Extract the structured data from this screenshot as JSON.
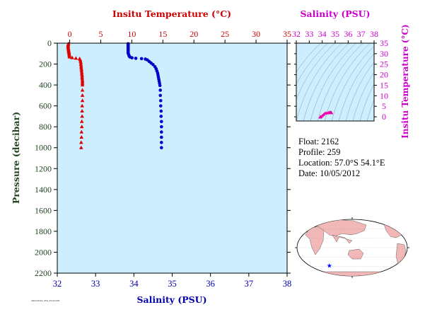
{
  "chart_data": [
    {
      "type": "scatter",
      "title": "",
      "x_top_label": "Insitu Temperature (°C)",
      "x_bottom_label": "Salinity (PSU)",
      "ylabel": "Pressure (decibar)",
      "temp_range": [
        -2,
        35
      ],
      "temp_ticks": [
        0,
        5,
        10,
        15,
        20,
        25,
        30,
        35
      ],
      "sal_range": [
        32,
        38
      ],
      "sal_ticks": [
        32,
        33,
        34,
        35,
        36,
        37,
        38
      ],
      "pressure_range": [
        0,
        2200
      ],
      "pressure_ticks": [
        0,
        200,
        400,
        600,
        800,
        1000,
        1200,
        1400,
        1600,
        1800,
        2000,
        2200
      ],
      "background": "#cceeff",
      "series": [
        {
          "kind": "temperature",
          "color": "#dd0000",
          "marker": "triangle",
          "points": [
            [
              -0.2,
              5
            ],
            [
              -0.25,
              15
            ],
            [
              -0.25,
              25
            ],
            [
              -0.25,
              35
            ],
            [
              -0.25,
              45
            ],
            [
              -0.2,
              55
            ],
            [
              -0.2,
              65
            ],
            [
              -0.15,
              75
            ],
            [
              -0.15,
              85
            ],
            [
              -0.1,
              95
            ],
            [
              -0.1,
              105
            ],
            [
              -0.05,
              115
            ],
            [
              -0.05,
              125
            ],
            [
              0.0,
              133
            ],
            [
              0.4,
              140
            ],
            [
              1.0,
              145
            ],
            [
              1.6,
              150
            ],
            [
              1.7,
              160
            ],
            [
              1.75,
              175
            ],
            [
              1.8,
              190
            ],
            [
              1.8,
              205
            ],
            [
              1.85,
              220
            ],
            [
              1.85,
              235
            ],
            [
              1.9,
              250
            ],
            [
              1.9,
              265
            ],
            [
              1.95,
              280
            ],
            [
              1.95,
              295
            ],
            [
              2.0,
              310
            ],
            [
              2.0,
              325
            ],
            [
              2.0,
              340
            ],
            [
              2.05,
              355
            ],
            [
              2.05,
              370
            ],
            [
              2.05,
              385
            ],
            [
              2.05,
              400
            ],
            [
              2.05,
              450
            ],
            [
              2.05,
              500
            ],
            [
              2.05,
              550
            ],
            [
              2.0,
              600
            ],
            [
              2.0,
              650
            ],
            [
              2.0,
              700
            ],
            [
              1.95,
              750
            ],
            [
              1.95,
              800
            ],
            [
              1.9,
              850
            ],
            [
              1.9,
              900
            ],
            [
              1.85,
              950
            ],
            [
              1.85,
              1000
            ]
          ]
        },
        {
          "kind": "salinity",
          "color": "#0000cc",
          "marker": "circle",
          "points": [
            [
              33.85,
              5
            ],
            [
              33.85,
              15
            ],
            [
              33.85,
              25
            ],
            [
              33.85,
              35
            ],
            [
              33.85,
              45
            ],
            [
              33.85,
              55
            ],
            [
              33.85,
              65
            ],
            [
              33.85,
              75
            ],
            [
              33.85,
              85
            ],
            [
              33.85,
              95
            ],
            [
              33.86,
              105
            ],
            [
              33.87,
              115
            ],
            [
              33.88,
              125
            ],
            [
              33.9,
              133
            ],
            [
              33.95,
              140
            ],
            [
              34.05,
              145
            ],
            [
              34.2,
              148
            ],
            [
              34.3,
              152
            ],
            [
              34.35,
              160
            ],
            [
              34.4,
              175
            ],
            [
              34.45,
              190
            ],
            [
              34.5,
              205
            ],
            [
              34.55,
              225
            ],
            [
              34.58,
              245
            ],
            [
              34.6,
              265
            ],
            [
              34.62,
              285
            ],
            [
              34.63,
              305
            ],
            [
              34.64,
              325
            ],
            [
              34.65,
              345
            ],
            [
              34.66,
              365
            ],
            [
              34.67,
              385
            ],
            [
              34.68,
              405
            ],
            [
              34.69,
              450
            ],
            [
              34.69,
              500
            ],
            [
              34.7,
              550
            ],
            [
              34.7,
              600
            ],
            [
              34.71,
              650
            ],
            [
              34.71,
              700
            ],
            [
              34.72,
              750
            ],
            [
              34.72,
              800
            ],
            [
              34.72,
              850
            ],
            [
              34.72,
              900
            ],
            [
              34.72,
              950
            ],
            [
              34.72,
              1000
            ]
          ]
        }
      ]
    },
    {
      "type": "scatter",
      "title": "",
      "xlabel": "Salinity (PSU)",
      "ylabel": "Insitu Temperature (°C)",
      "x_range": [
        32,
        38
      ],
      "x_ticks": [
        32,
        33,
        34,
        35,
        36,
        37,
        38
      ],
      "y_range": [
        -2,
        35
      ],
      "y_ticks": [
        0,
        5,
        10,
        15,
        20,
        25,
        30,
        35
      ],
      "color": "#ee00aa",
      "background": "#cceeff",
      "points": [
        [
          33.85,
          -0.2
        ],
        [
          33.85,
          -0.1
        ],
        [
          33.86,
          0.0
        ],
        [
          33.9,
          0.0
        ],
        [
          34.0,
          0.5
        ],
        [
          34.1,
          1.0
        ],
        [
          34.2,
          1.6
        ],
        [
          34.3,
          1.7
        ],
        [
          34.4,
          1.8
        ],
        [
          34.5,
          1.9
        ],
        [
          34.55,
          2.0
        ],
        [
          34.6,
          2.05
        ],
        [
          34.65,
          2.05
        ],
        [
          34.68,
          2.0
        ],
        [
          34.7,
          1.95
        ],
        [
          34.72,
          1.85
        ]
      ]
    }
  ],
  "info": {
    "float_label": "Float:",
    "float_value": "2162",
    "profile_label": "Profile:",
    "profile_value": "259",
    "location_label": "Location:",
    "location_value": "57.0°S  54.1°E",
    "date_label": "Date:",
    "date_value": "10/05/2012"
  },
  "map": {
    "ocean_color": "#ffffff",
    "land_color": "#f2b8b8",
    "marker_color": "#0000ff",
    "marker_symbol": "★",
    "marker_lat": -57.0,
    "marker_lon": 54.1
  },
  "footer_id": "ARGO2162_259_20121005"
}
